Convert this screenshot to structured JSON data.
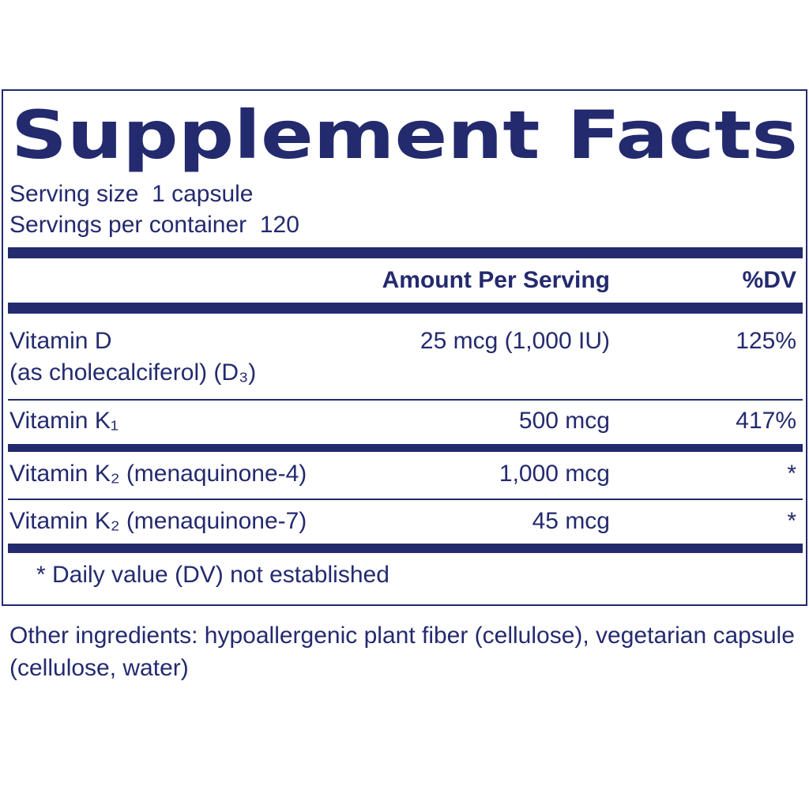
{
  "title": "Supplement Facts",
  "serving_size": "Serving size  1 capsule",
  "servings_per_container": "Servings per container  120",
  "table": {
    "header": [
      "Amount Per Serving",
      "%DV"
    ],
    "rows": [
      {
        "name": "Vitamin D",
        "subname": "(as cholecalciferol) (D₃)",
        "amount": "25 mcg (1,000 IU)",
        "dv": "125%"
      },
      {
        "name": "Vitamin K₁",
        "amount": "500 mcg",
        "dv": "417%"
      },
      {
        "name": "Vitamin K₂ (menaquinone-4)",
        "amount": "1,000 mcg",
        "dv": "*"
      },
      {
        "name": "Vitamin K₂ (menaquinone-7)",
        "amount": "45 mcg",
        "dv": "*"
      }
    ]
  },
  "footnote": "* Daily value (DV) not established",
  "other_ingredients": "Other ingredients: hypoallergenic plant fiber (cellulose), vegetarian capsule (cellulose, water)"
}
